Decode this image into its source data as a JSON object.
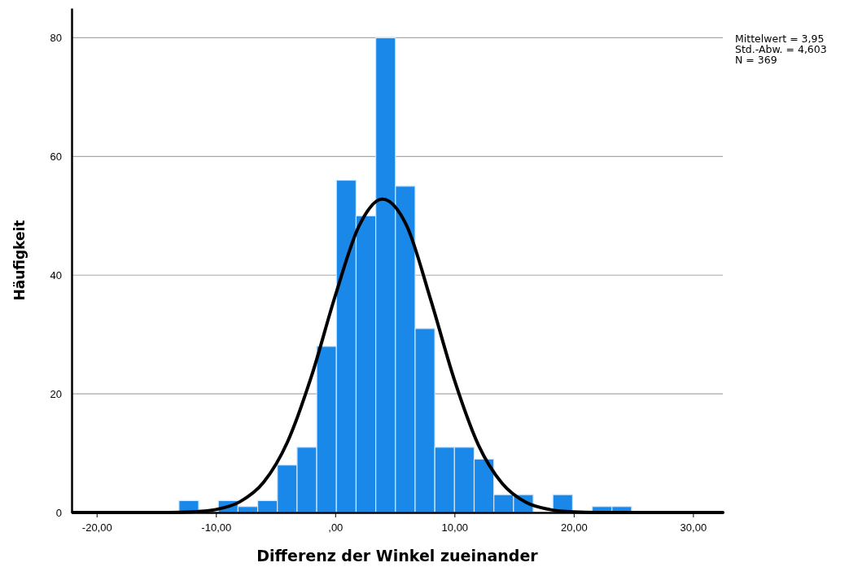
{
  "chart_data": {
    "type": "histogram",
    "xlabel": "Differenz der Winkel zueinander",
    "ylabel": "Häufigkeit",
    "bins": [
      -13.1,
      -11.45,
      -9.8,
      -8.15,
      -6.5,
      -4.85,
      -3.2,
      -1.55,
      0.1,
      1.75,
      3.4,
      5.05,
      6.7,
      8.35,
      10.0,
      11.65,
      13.3,
      14.95,
      16.6,
      18.25,
      19.9,
      21.55,
      23.2,
      24.85
    ],
    "values": [
      2,
      0,
      2,
      1,
      2,
      8,
      11,
      28,
      56,
      50,
      80,
      55,
      31,
      11,
      11,
      9,
      3,
      3,
      null,
      3,
      0,
      1,
      1
    ],
    "color": "#1a88e8",
    "series": [
      {
        "type": "line",
        "color": "#000000",
        "x": [
          -22,
          -14,
          -12,
          -10,
          -8,
          -6,
          -4,
          -2,
          0,
          2,
          3.95,
          6,
          8,
          10,
          12,
          14,
          16,
          18,
          20,
          22,
          24,
          32.5
        ],
        "values": [
          0,
          0,
          0.1,
          0.5,
          1.8,
          5.1,
          11.9,
          22.9,
          36.5,
          48.3,
          52.8,
          48.3,
          35.9,
          22.3,
          11.4,
          4.9,
          1.7,
          0.5,
          0.1,
          0,
          0,
          0
        ]
      }
    ],
    "marker": "none",
    "xlim": [
      -22.1,
      32.5
    ],
    "xticks": [
      {
        "value": -20,
        "label": "-20,00"
      },
      {
        "value": -10,
        "label": "-10,00"
      },
      {
        "value": 0,
        "label": ",00"
      },
      {
        "value": 10,
        "label": "10,00"
      },
      {
        "value": 20,
        "label": "20,00"
      },
      {
        "value": 30,
        "label": "30,00"
      }
    ],
    "ylim": [
      0,
      85
    ],
    "yticks": [
      0,
      20,
      40,
      60,
      80
    ],
    "grid": "y",
    "annotations": [
      "Mittelwert = 3,95",
      "Std.-Abw. = 4,603",
      "N = 369"
    ]
  }
}
